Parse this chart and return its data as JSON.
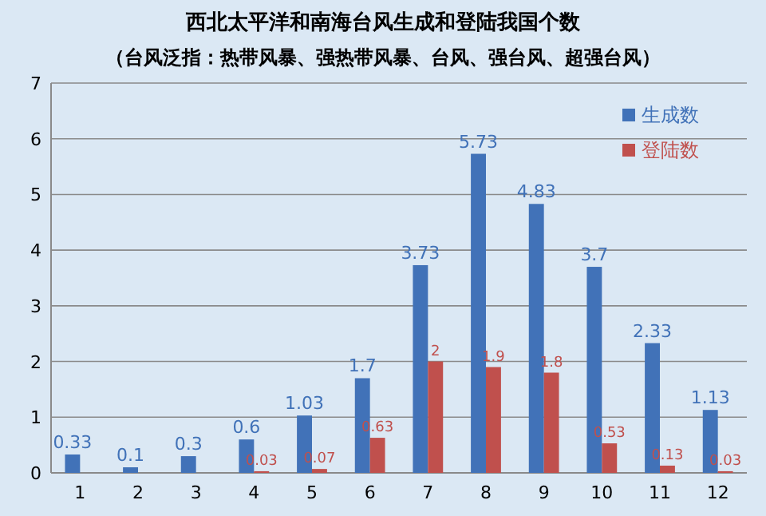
{
  "chart_data": {
    "type": "bar",
    "title": "西北太平洋和南海台风生成和登陆我国个数",
    "subtitle": "（台风泛指：热带风暴、强热带风暴、台风、强台风、超强台风）",
    "categories": [
      "1",
      "2",
      "3",
      "4",
      "5",
      "6",
      "7",
      "8",
      "9",
      "10",
      "11",
      "12"
    ],
    "series": [
      {
        "name": "生成数",
        "color": "#4172b8",
        "values": [
          0.33,
          0.1,
          0.3,
          0.6,
          1.03,
          1.7,
          3.73,
          5.73,
          4.83,
          3.7,
          2.33,
          1.13
        ]
      },
      {
        "name": "登陆数",
        "color": "#c0504d",
        "values": [
          null,
          null,
          null,
          0.03,
          0.07,
          0.63,
          2,
          1.9,
          1.8,
          0.53,
          0.13,
          0.03
        ]
      }
    ],
    "ylim": [
      0,
      7
    ],
    "yticks": [
      0,
      1,
      2,
      3,
      4,
      5,
      6,
      7
    ],
    "grid": "y",
    "legend": "top right",
    "data_labels": true
  }
}
